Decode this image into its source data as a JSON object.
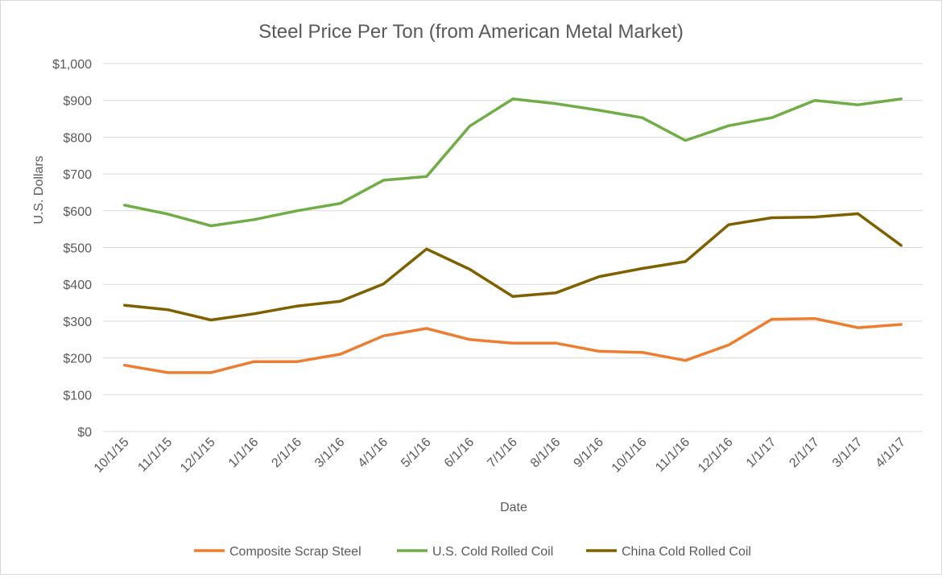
{
  "chart_data": {
    "type": "line",
    "title": "Steel Price Per Ton (from American Metal Market)",
    "xlabel": "Date",
    "ylabel": "U.S. Dollars",
    "ylim": [
      0,
      1000
    ],
    "yticks": [
      0,
      100,
      200,
      300,
      400,
      500,
      600,
      700,
      800,
      900,
      1000
    ],
    "ytick_labels": [
      "$0",
      "$100",
      "$200",
      "$300",
      "$400",
      "$500",
      "$600",
      "$700",
      "$800",
      "$900",
      "$1,000"
    ],
    "grid": true,
    "legend_position": "bottom",
    "categories": [
      "10/1/15",
      "11/1/15",
      "12/1/15",
      "1/1/16",
      "2/1/16",
      "3/1/16",
      "4/1/16",
      "5/1/16",
      "6/1/16",
      "7/1/16",
      "8/1/16",
      "9/1/16",
      "10/1/16",
      "11/1/16",
      "12/1/16",
      "1/1/17",
      "2/1/17",
      "3/1/17",
      "4/1/17"
    ],
    "series": [
      {
        "name": "Composite Scrap Steel",
        "color": "#ed7d31",
        "values": [
          180,
          160,
          160,
          190,
          190,
          210,
          260,
          280,
          250,
          240,
          240,
          218,
          215,
          193,
          235,
          305,
          307,
          282,
          291
        ]
      },
      {
        "name": "U.S. Cold Rolled Coil",
        "color": "#70ad47",
        "values": [
          615,
          591,
          559,
          576,
          600,
          620,
          683,
          693,
          830,
          904,
          891,
          873,
          853,
          791,
          831,
          853,
          900,
          888,
          904
        ]
      },
      {
        "name": "China Cold Rolled Coil",
        "color": "#7f6000",
        "values": [
          343,
          331,
          303,
          320,
          341,
          354,
          401,
          496,
          441,
          367,
          377,
          421,
          443,
          462,
          562,
          581,
          583,
          592,
          506
        ]
      }
    ]
  }
}
